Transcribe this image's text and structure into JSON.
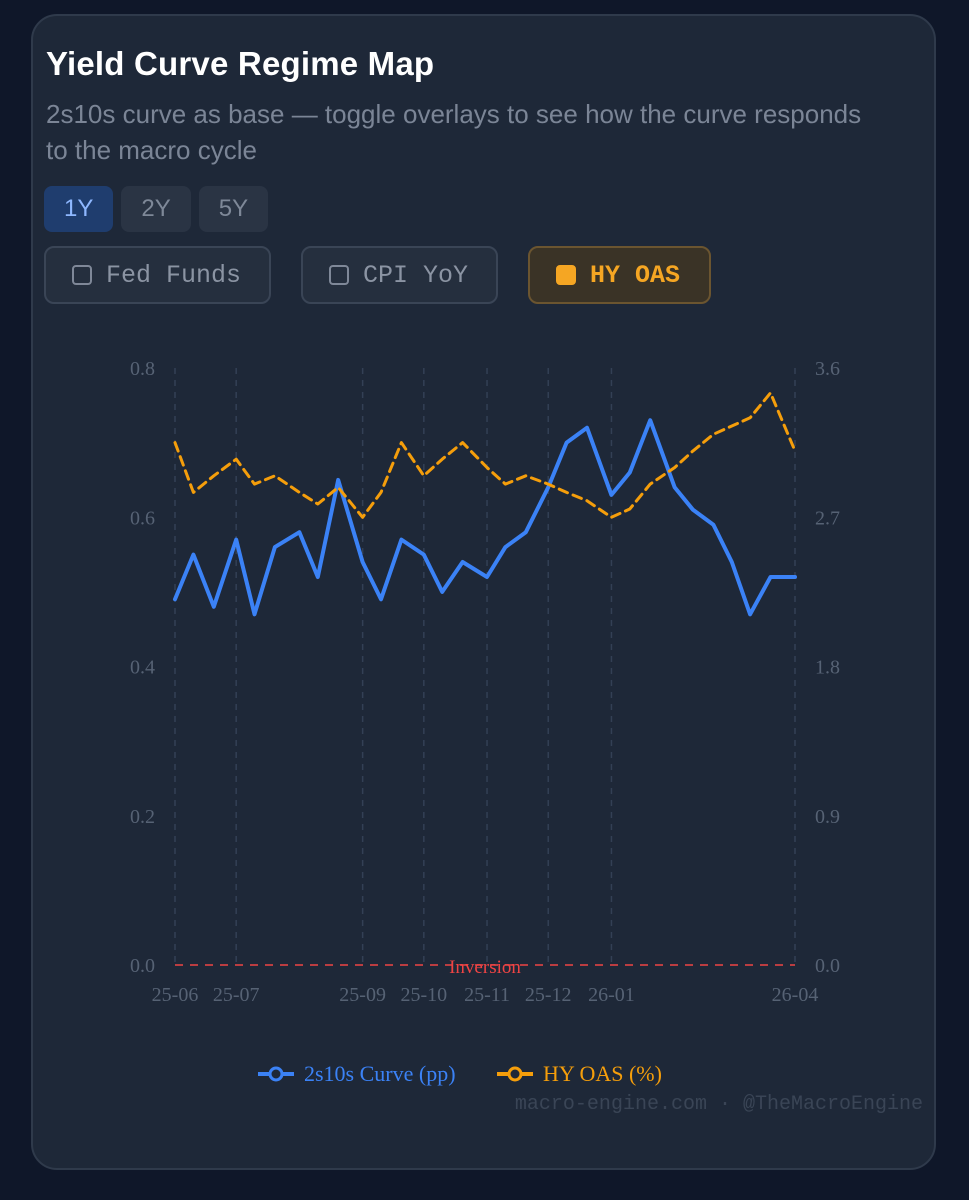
{
  "header": {
    "title": "Yield Curve Regime Map",
    "subtitle": "2s10s curve as base — toggle overlays to see how the curve responds to the macro cycle"
  },
  "range_buttons": [
    {
      "label": "1Y",
      "active": true
    },
    {
      "label": "2Y",
      "active": false
    },
    {
      "label": "5Y",
      "active": false
    }
  ],
  "overlay_toggles": [
    {
      "label": "Fed Funds",
      "on": false
    },
    {
      "label": "CPI YoY",
      "on": false
    },
    {
      "label": "HY OAS",
      "on": true
    }
  ],
  "colors": {
    "curve": "#3b82f6",
    "hy_oas": "#f59e0b",
    "inversion": "#ef4444"
  },
  "footer": "macro-engine.com · @TheMacroEngine",
  "chart_data": {
    "type": "line",
    "x_ticks": [
      "25-06",
      "25-07",
      "25-09",
      "25-10",
      "25-11",
      "25-12",
      "26-01",
      "26-04"
    ],
    "x_range": [
      "2025-06-01",
      "2026-04-01"
    ],
    "y_left": {
      "ticks": [
        "0.0",
        "0.2",
        "0.4",
        "0.6",
        "0.8"
      ],
      "range": [
        0,
        0.8
      ]
    },
    "y_right": {
      "ticks": [
        "0.0",
        "0.9",
        "1.8",
        "2.7",
        "3.6"
      ],
      "range": [
        0,
        3.6
      ]
    },
    "grid": "vertical dashed",
    "legend_position": "bottom",
    "annotation": {
      "label": "Inversion",
      "y": 0
    },
    "series": [
      {
        "name": "2s10s Curve (pp)",
        "axis": "left",
        "style": "solid",
        "x": [
          "2025-06-01",
          "2025-06-10",
          "2025-06-20",
          "2025-07-01",
          "2025-07-10",
          "2025-07-20",
          "2025-08-01",
          "2025-08-10",
          "2025-08-20",
          "2025-09-01",
          "2025-09-10",
          "2025-09-20",
          "2025-10-01",
          "2025-10-10",
          "2025-10-20",
          "2025-11-01",
          "2025-11-10",
          "2025-11-20",
          "2025-12-01",
          "2025-12-10",
          "2025-12-20",
          "2026-01-01",
          "2026-01-10",
          "2026-01-20",
          "2026-02-01",
          "2026-02-10",
          "2026-02-20",
          "2026-03-01",
          "2026-03-10",
          "2026-03-20",
          "2026-04-01"
        ],
        "values": [
          0.49,
          0.55,
          0.48,
          0.57,
          0.47,
          0.56,
          0.58,
          0.52,
          0.65,
          0.54,
          0.49,
          0.57,
          0.55,
          0.5,
          0.54,
          0.52,
          0.56,
          0.58,
          0.64,
          0.7,
          0.72,
          0.63,
          0.66,
          0.73,
          0.64,
          0.61,
          0.59,
          0.54,
          0.47,
          0.52,
          0.52
        ]
      },
      {
        "name": "HY OAS (%)",
        "axis": "right",
        "style": "dashed",
        "x": [
          "2025-06-01",
          "2025-06-10",
          "2025-06-20",
          "2025-07-01",
          "2025-07-10",
          "2025-07-20",
          "2025-08-01",
          "2025-08-10",
          "2025-08-20",
          "2025-09-01",
          "2025-09-10",
          "2025-09-20",
          "2025-10-01",
          "2025-10-10",
          "2025-10-20",
          "2025-11-01",
          "2025-11-10",
          "2025-11-20",
          "2025-12-01",
          "2025-12-10",
          "2025-12-20",
          "2026-01-01",
          "2026-01-10",
          "2026-01-20",
          "2026-02-01",
          "2026-02-10",
          "2026-02-20",
          "2026-03-01",
          "2026-03-10",
          "2026-03-20",
          "2026-04-01"
        ],
        "values": [
          3.15,
          2.85,
          2.95,
          3.05,
          2.9,
          2.95,
          2.85,
          2.78,
          2.88,
          2.7,
          2.85,
          3.15,
          2.95,
          3.05,
          3.15,
          3.0,
          2.9,
          2.95,
          2.9,
          2.85,
          2.8,
          2.7,
          2.75,
          2.9,
          3.0,
          3.1,
          3.2,
          3.25,
          3.3,
          3.45,
          3.1
        ]
      }
    ]
  }
}
